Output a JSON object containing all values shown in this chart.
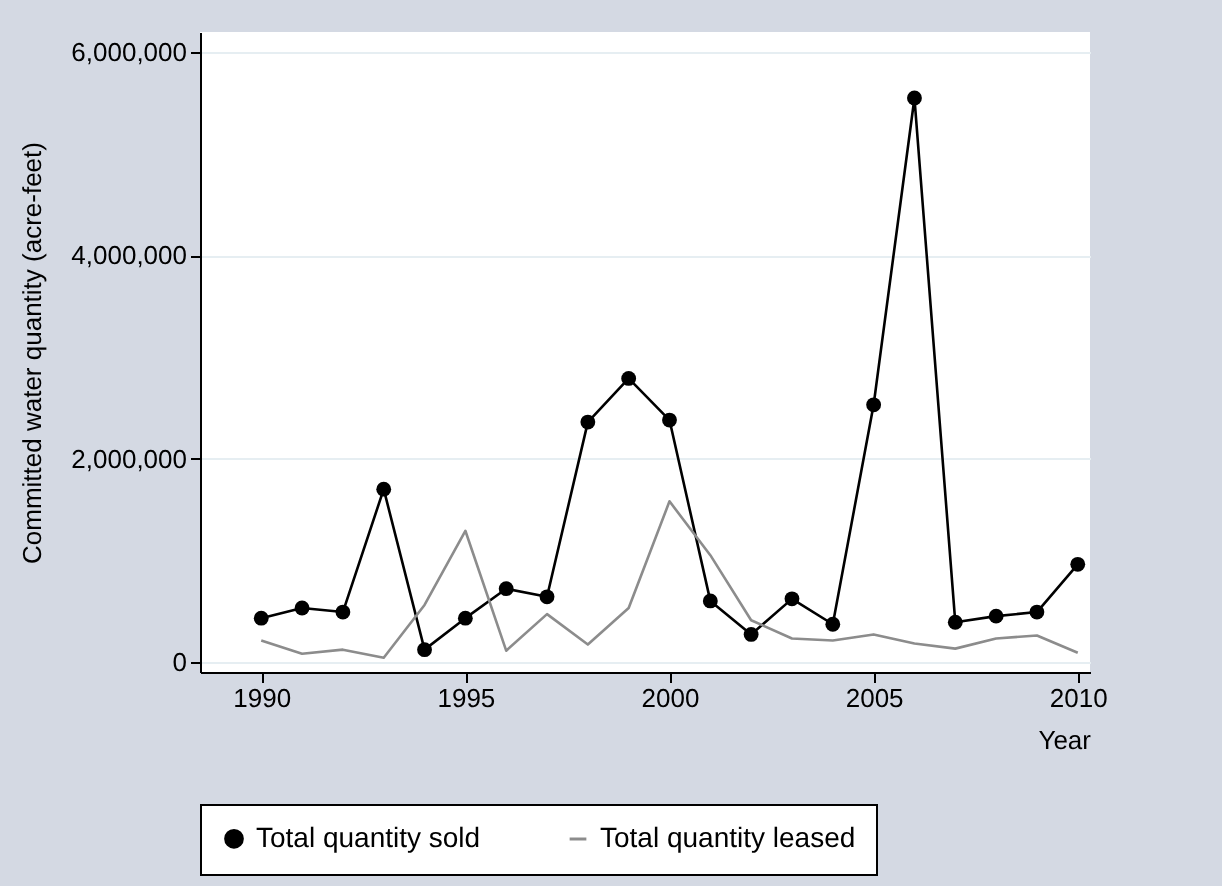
{
  "chart_data": {
    "type": "line",
    "xlabel": "Year",
    "ylabel": "Committed water quantity (acre-feet)",
    "x": [
      1990,
      1991,
      1992,
      1993,
      1994,
      1995,
      1996,
      1997,
      1998,
      1999,
      2000,
      2001,
      2002,
      2003,
      2004,
      2005,
      2006,
      2007,
      2008,
      2009,
      2010
    ],
    "series": [
      {
        "name": "Total quantity sold",
        "color": "#000000",
        "marker": "circle",
        "values": [
          430000,
          530000,
          490000,
          1700000,
          120000,
          430000,
          720000,
          640000,
          2360000,
          2790000,
          2380000,
          600000,
          270000,
          620000,
          370000,
          2530000,
          5550000,
          390000,
          450000,
          490000,
          960000
        ]
      },
      {
        "name": "Total quantity leased",
        "color": "#8c8c8c",
        "marker": "none",
        "values": [
          210000,
          80000,
          120000,
          40000,
          560000,
          1290000,
          110000,
          470000,
          170000,
          530000,
          1580000,
          1050000,
          410000,
          230000,
          210000,
          270000,
          180000,
          130000,
          230000,
          260000,
          90000
        ]
      }
    ],
    "xlim": [
      1988.5,
      2010.3
    ],
    "xticks": [
      1990,
      1995,
      2000,
      2005,
      2010
    ],
    "ylim": [
      -100000,
      6200000
    ],
    "yticks": [
      0,
      {
        "value": 2000000,
        "label": "2,000,000"
      },
      {
        "value": 4000000,
        "label": "4,000,000"
      },
      {
        "value": 6000000,
        "label": "6,000,000"
      }
    ],
    "grid": "y",
    "legend": "bottom"
  }
}
